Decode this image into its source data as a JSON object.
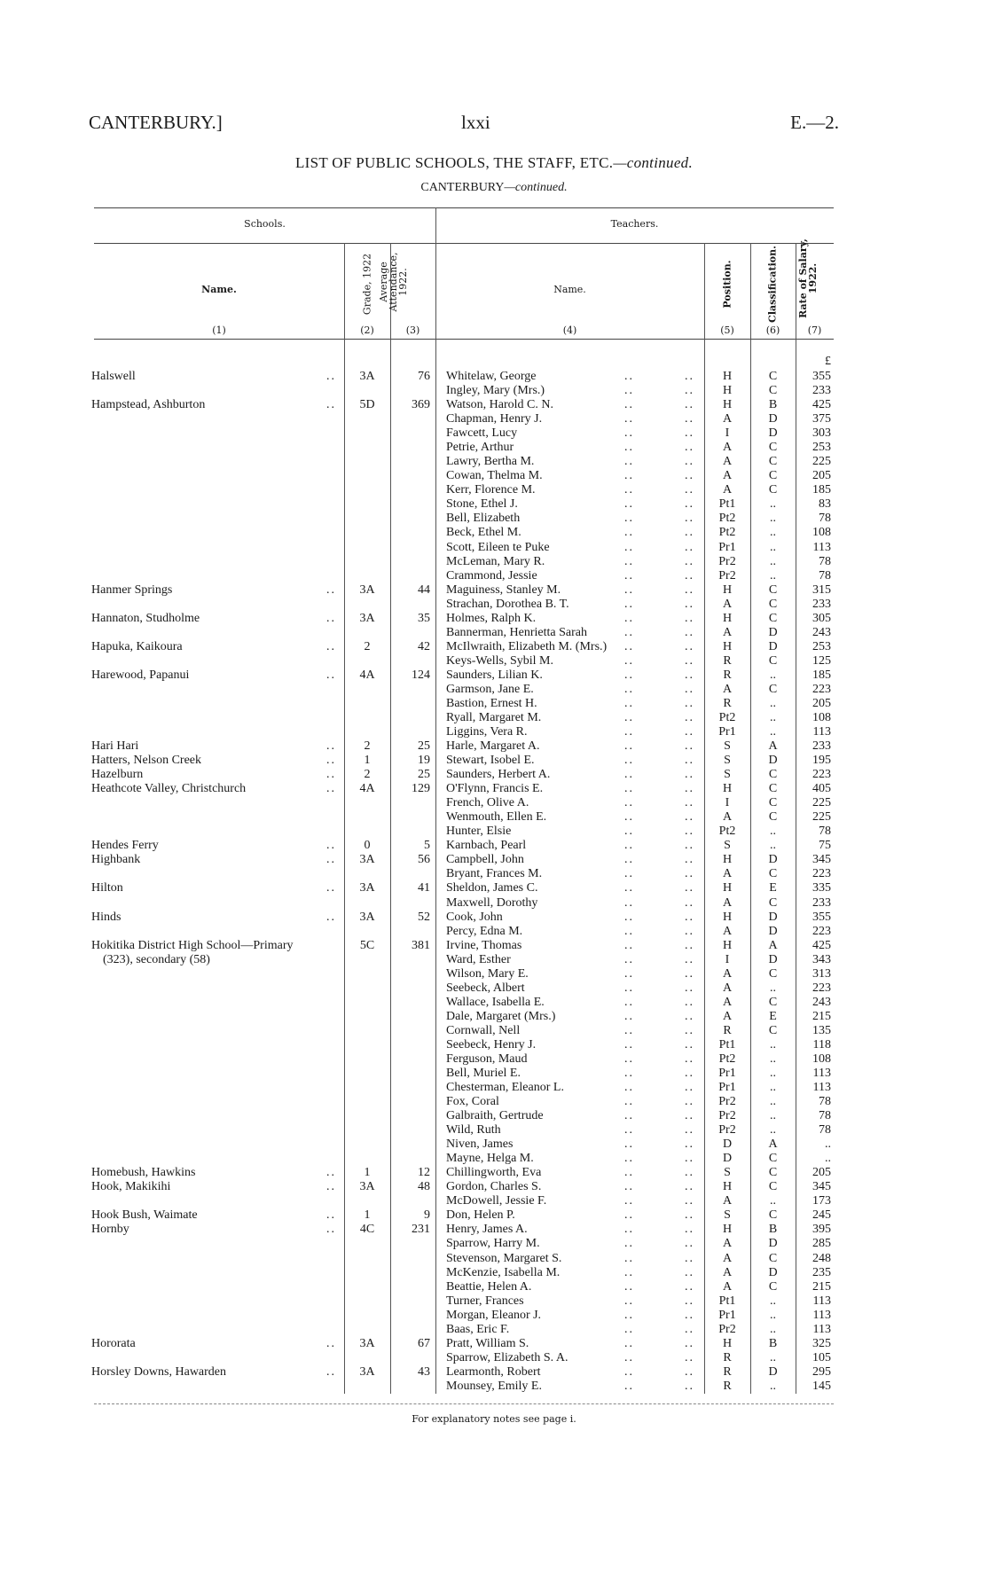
{
  "header": {
    "left": "CANTERBURY.]",
    "center": "lxxi",
    "right": "E.—2."
  },
  "title": "LIST OF PUBLIC SCHOOLS, THE STAFF, ETC.",
  "title_suffix": "—continued.",
  "subtitle": "CANTERBURY",
  "subtitle_suffix": "—continued.",
  "table": {
    "group_headers": {
      "schools": "Schools.",
      "teachers": "Teachers."
    },
    "columns": [
      {
        "label": "Name.",
        "num": "(1)"
      },
      {
        "label": "Grade, 1922",
        "num": "(2)"
      },
      {
        "label": "Average Attendance, 1922.",
        "num": "(3)"
      },
      {
        "label": "Name.",
        "num": "(4)"
      },
      {
        "label": "Position.",
        "num": "(5)"
      },
      {
        "label": "Classification.",
        "num": "(6)"
      },
      {
        "label": "Rate of Salary, 1922.",
        "num": "(7)"
      }
    ],
    "currency": "£",
    "schools": [
      {
        "row": 0,
        "name": "Halswell",
        "grade": "3A",
        "attendance": "76"
      },
      {
        "row": 2,
        "name": "Hampstead, Ashburton",
        "grade": "5D",
        "attendance": "369"
      },
      {
        "row": 15,
        "name": "Hanmer Springs",
        "grade": "3A",
        "attendance": "44"
      },
      {
        "row": 17,
        "name": "Hannaton, Studholme",
        "grade": "3A",
        "attendance": "35"
      },
      {
        "row": 19,
        "name": "Hapuka, Kaikoura",
        "grade": "2",
        "attendance": "42"
      },
      {
        "row": 21,
        "name": "Harewood, Papanui",
        "grade": "4A",
        "attendance": "124"
      },
      {
        "row": 26,
        "name": "Hari Hari",
        "grade": "2",
        "attendance": "25"
      },
      {
        "row": 27,
        "name": "Hatters, Nelson Creek",
        "grade": "1",
        "attendance": "19"
      },
      {
        "row": 28,
        "name": "Hazelburn",
        "grade": "2",
        "attendance": "25"
      },
      {
        "row": 29,
        "name": "Heathcote Valley, Christchurch",
        "grade": "4A",
        "attendance": "129"
      },
      {
        "row": 33,
        "name": "Hendes Ferry",
        "grade": "0",
        "attendance": "5"
      },
      {
        "row": 34,
        "name": "Highbank",
        "grade": "3A",
        "attendance": "56"
      },
      {
        "row": 36,
        "name": "Hilton",
        "grade": "3A",
        "attendance": "41"
      },
      {
        "row": 38,
        "name": "Hinds",
        "grade": "3A",
        "attendance": "52"
      },
      {
        "row": 40,
        "name": "Hokitika District High School—Primary",
        "name_cont": "(323), secondary (58)",
        "grade": "5C",
        "attendance": "381"
      },
      {
        "row": 56,
        "name": "Homebush, Hawkins",
        "grade": "1",
        "attendance": "12"
      },
      {
        "row": 57,
        "name": "Hook, Makikihi",
        "grade": "3A",
        "attendance": "48"
      },
      {
        "row": 59,
        "name": "Hook Bush, Waimate",
        "grade": "1",
        "attendance": "9"
      },
      {
        "row": 60,
        "name": "Hornby",
        "grade": "4C",
        "attendance": "231"
      },
      {
        "row": 68,
        "name": "Hororata",
        "grade": "3A",
        "attendance": "67"
      },
      {
        "row": 70,
        "name": "Horsley Downs, Hawarden",
        "grade": "3A",
        "attendance": "43"
      }
    ],
    "teachers": [
      [
        "Whitelaw, George",
        "H",
        "C",
        "355"
      ],
      [
        "Ingley, Mary (Mrs.)",
        "H",
        "C",
        "233"
      ],
      [
        "Watson, Harold C. N.",
        "H",
        "B",
        "425"
      ],
      [
        "Chapman, Henry J.",
        "A",
        "D",
        "375"
      ],
      [
        "Fawcett, Lucy",
        "I",
        "D",
        "303"
      ],
      [
        "Petrie, Arthur",
        "A",
        "C",
        "253"
      ],
      [
        "Lawry, Bertha M.",
        "A",
        "C",
        "225"
      ],
      [
        "Cowan, Thelma M.",
        "A",
        "C",
        "205"
      ],
      [
        "Kerr, Florence M.",
        "A",
        "C",
        "185"
      ],
      [
        "Stone, Ethel J.",
        "Pt1",
        "..",
        "83"
      ],
      [
        "Bell, Elizabeth",
        "Pt2",
        "..",
        "78"
      ],
      [
        "Beck, Ethel M.",
        "Pt2",
        "..",
        "108"
      ],
      [
        "Scott, Eileen te Puke",
        "Pr1",
        "..",
        "113"
      ],
      [
        "McLeman, Mary R.",
        "Pr2",
        "..",
        "78"
      ],
      [
        "Crammond, Jessie",
        "Pr2",
        "..",
        "78"
      ],
      [
        "Maguiness, Stanley M.",
        "H",
        "C",
        "315"
      ],
      [
        "Strachan, Dorothea B. T.",
        "A",
        "C",
        "233"
      ],
      [
        "Holmes, Ralph K.",
        "H",
        "C",
        "305"
      ],
      [
        "Bannerman, Henrietta Sarah",
        "A",
        "D",
        "243"
      ],
      [
        "McIlwraith, Elizabeth M. (Mrs.)",
        "H",
        "D",
        "253"
      ],
      [
        "Keys-Wells, Sybil M.",
        "R",
        "C",
        "125"
      ],
      [
        "Saunders, Lilian K.",
        "R",
        "..",
        "185"
      ],
      [
        "Garmson, Jane E.",
        "A",
        "C",
        "223"
      ],
      [
        "Bastion, Ernest H.",
        "R",
        "..",
        "205"
      ],
      [
        "Ryall, Margaret M.",
        "Pt2",
        "..",
        "108"
      ],
      [
        "Liggins, Vera R.",
        "Pr1",
        "..",
        "113"
      ],
      [
        "Harle, Margaret A.",
        "S",
        "A",
        "233"
      ],
      [
        "Stewart, Isobel E.",
        "S",
        "D",
        "195"
      ],
      [
        "Saunders, Herbert A.",
        "S",
        "C",
        "223"
      ],
      [
        "O'Flynn, Francis E.",
        "H",
        "C",
        "405"
      ],
      [
        "French, Olive A.",
        "I",
        "C",
        "225"
      ],
      [
        "Wenmouth, Ellen E.",
        "A",
        "C",
        "225"
      ],
      [
        "Hunter, Elsie",
        "Pt2",
        "..",
        "78"
      ],
      [
        "Karnbach, Pearl",
        "S",
        "..",
        "75"
      ],
      [
        "Campbell, John",
        "H",
        "D",
        "345"
      ],
      [
        "Bryant, Frances M.",
        "A",
        "C",
        "223"
      ],
      [
        "Sheldon, James C.",
        "H",
        "E",
        "335"
      ],
      [
        "Maxwell, Dorothy",
        "A",
        "C",
        "233"
      ],
      [
        "Cook, John",
        "H",
        "D",
        "355"
      ],
      [
        "Percy, Edna M.",
        "A",
        "D",
        "223"
      ],
      [
        "Irvine, Thomas",
        "H",
        "A",
        "425"
      ],
      [
        "Ward, Esther",
        "I",
        "D",
        "343"
      ],
      [
        "Wilson, Mary E.",
        "A",
        "C",
        "313"
      ],
      [
        "Seebeck, Albert",
        "A",
        "..",
        "223"
      ],
      [
        "Wallace, Isabella E.",
        "A",
        "C",
        "243"
      ],
      [
        "Dale, Margaret (Mrs.)",
        "A",
        "E",
        "215"
      ],
      [
        "Cornwall, Nell",
        "R",
        "C",
        "135"
      ],
      [
        "Seebeck, Henry J.",
        "Pt1",
        "..",
        "118"
      ],
      [
        "Ferguson, Maud",
        "Pt2",
        "..",
        "108"
      ],
      [
        "Bell, Muriel E.",
        "Pr1",
        "..",
        "113"
      ],
      [
        "Chesterman, Eleanor L.",
        "Pr1",
        "..",
        "113"
      ],
      [
        "Fox, Coral",
        "Pr2",
        "..",
        "78"
      ],
      [
        "Galbraith, Gertrude",
        "Pr2",
        "..",
        "78"
      ],
      [
        "Wild, Ruth",
        "Pr2",
        "..",
        "78"
      ],
      [
        "Niven, James",
        "D",
        "A",
        ".."
      ],
      [
        "Mayne, Helga M.",
        "D",
        "C",
        ".."
      ],
      [
        "Chillingworth, Eva",
        "S",
        "C",
        "205"
      ],
      [
        "Gordon, Charles S.",
        "H",
        "C",
        "345"
      ],
      [
        "McDowell, Jessie F.",
        "A",
        "..",
        "173"
      ],
      [
        "Don, Helen P.",
        "S",
        "C",
        "245"
      ],
      [
        "Henry, James A.",
        "H",
        "B",
        "395"
      ],
      [
        "Sparrow, Harry M.",
        "A",
        "D",
        "285"
      ],
      [
        "Stevenson, Margaret S.",
        "A",
        "C",
        "248"
      ],
      [
        "McKenzie, Isabella M.",
        "A",
        "D",
        "235"
      ],
      [
        "Beattie, Helen A.",
        "A",
        "C",
        "215"
      ],
      [
        "Turner, Frances",
        "Pt1",
        "..",
        "113"
      ],
      [
        "Morgan, Eleanor J.",
        "Pr1",
        "..",
        "113"
      ],
      [
        "Baas, Eric F.",
        "Pr2",
        "..",
        "113"
      ],
      [
        "Pratt, William S.",
        "H",
        "B",
        "325"
      ],
      [
        "Sparrow, Elizabeth S. A.",
        "R",
        "..",
        "105"
      ],
      [
        "Learmonth, Robert",
        "R",
        "D",
        "295"
      ],
      [
        "Mounsey, Emily E.",
        "R",
        "..",
        "145"
      ]
    ]
  },
  "footer": "For explanatory notes see page i."
}
